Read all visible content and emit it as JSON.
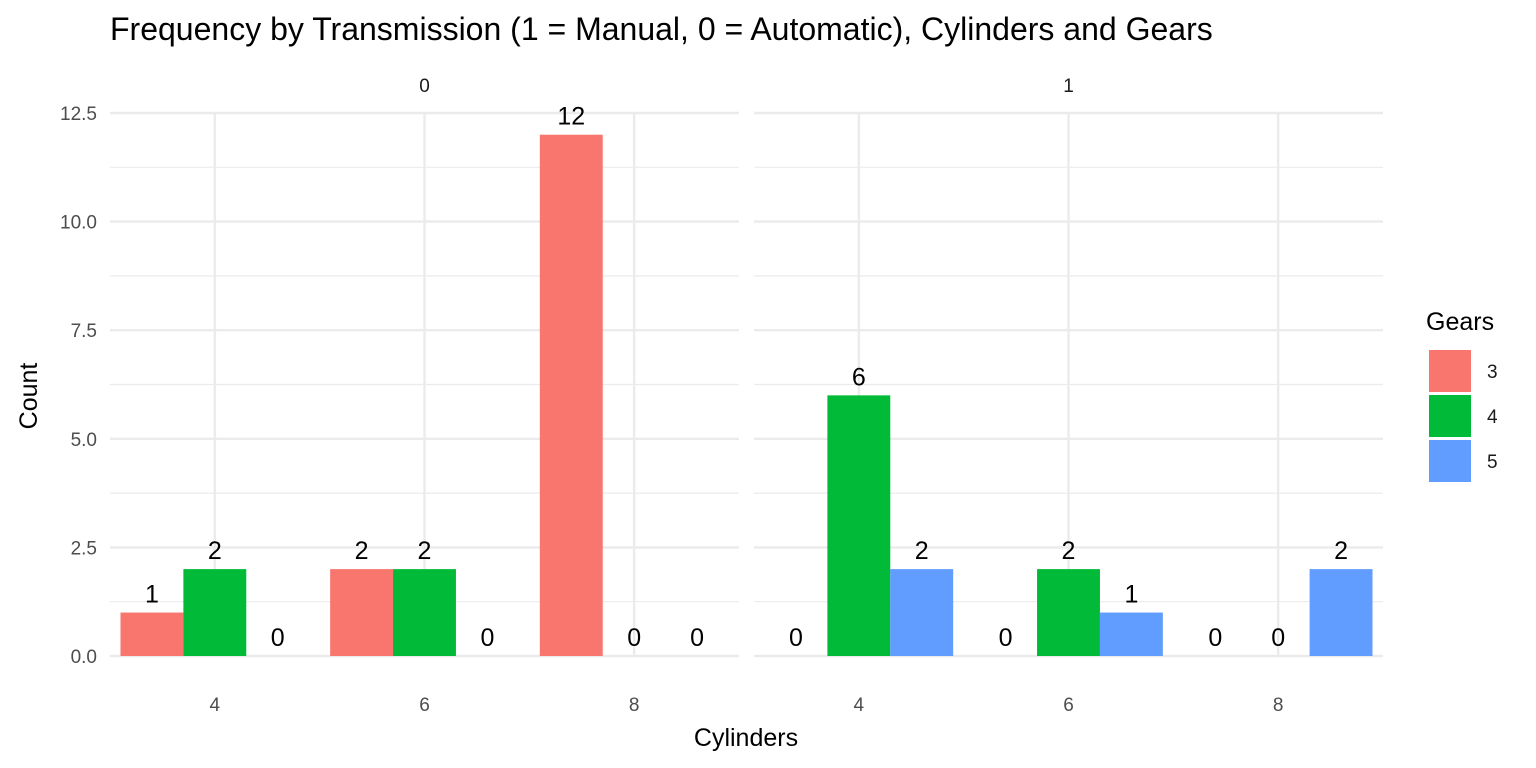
{
  "chart_data": {
    "type": "bar",
    "title": "Frequency by Transmission (1 = Manual, 0 = Automatic), Cylinders and Gears",
    "xlabel": "Cylinders",
    "ylabel": "Count",
    "ylim": [
      0,
      12.5
    ],
    "y_ticks": [
      "0.0",
      "2.5",
      "5.0",
      "7.5",
      "10.0",
      "12.5"
    ],
    "y_tick_values": [
      0,
      2.5,
      5,
      7.5,
      10,
      12.5
    ],
    "categories": [
      "4",
      "6",
      "8"
    ],
    "grid": true,
    "legend": {
      "title": "Gears",
      "position": "right",
      "entries": [
        {
          "label": "3",
          "color": "#F8766D"
        },
        {
          "label": "4",
          "color": "#00BA38"
        },
        {
          "label": "5",
          "color": "#619CFF"
        }
      ]
    },
    "panels": [
      {
        "label": "0",
        "series": [
          {
            "name": "3",
            "values": [
              1,
              2,
              12
            ]
          },
          {
            "name": "4",
            "values": [
              2,
              2,
              0
            ]
          },
          {
            "name": "5",
            "values": [
              0,
              0,
              0
            ]
          }
        ]
      },
      {
        "label": "1",
        "series": [
          {
            "name": "3",
            "values": [
              0,
              0,
              0
            ]
          },
          {
            "name": "4",
            "values": [
              6,
              2,
              0
            ]
          },
          {
            "name": "5",
            "values": [
              2,
              1,
              2
            ]
          }
        ]
      }
    ]
  }
}
